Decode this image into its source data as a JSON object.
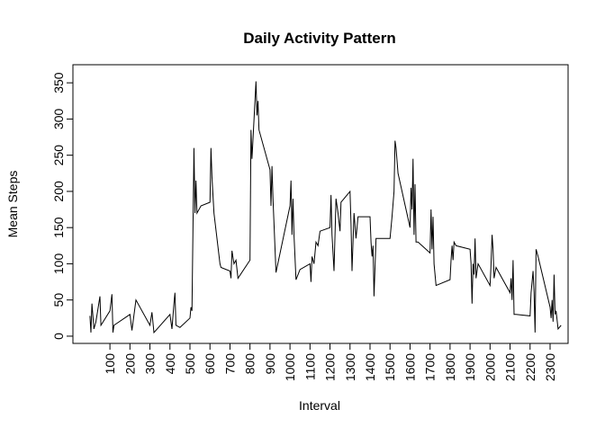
{
  "chart_data": {
    "type": "line",
    "title": "Daily Activity Pattern",
    "x_label": "Interval",
    "y_label": "Mean Steps",
    "color": "#000000",
    "x": [
      0,
      5,
      10,
      20,
      30,
      50,
      55,
      100,
      110,
      115,
      120,
      200,
      210,
      230,
      300,
      310,
      320,
      400,
      410,
      420,
      425,
      430,
      450,
      500,
      505,
      510,
      520,
      525,
      530,
      535,
      555,
      600,
      605,
      610,
      620,
      650,
      655,
      700,
      705,
      710,
      720,
      730,
      740,
      800,
      805,
      810,
      830,
      835,
      840,
      845,
      900,
      905,
      910,
      915,
      930,
      1000,
      1005,
      1010,
      1015,
      1020,
      1030,
      1050,
      1100,
      1105,
      1110,
      1120,
      1130,
      1140,
      1150,
      1200,
      1205,
      1210,
      1220,
      1230,
      1240,
      1250,
      1255,
      1300,
      1305,
      1310,
      1320,
      1330,
      1340,
      1400,
      1405,
      1410,
      1415,
      1420,
      1430,
      1500,
      1510,
      1520,
      1525,
      1530,
      1540,
      1600,
      1605,
      1610,
      1615,
      1620,
      1625,
      1630,
      1640,
      1700,
      1705,
      1710,
      1715,
      1720,
      1730,
      1800,
      1805,
      1810,
      1815,
      1820,
      1830,
      1900,
      1905,
      1910,
      1915,
      1920,
      1925,
      1930,
      1940,
      2000,
      2005,
      2010,
      2015,
      2020,
      2030,
      2100,
      2105,
      2110,
      2115,
      2120,
      2130,
      2200,
      2205,
      2210,
      2215,
      2220,
      2225,
      2230,
      2240,
      2300,
      2305,
      2310,
      2315,
      2320,
      2325,
      2330,
      2340,
      2355
    ],
    "values": [
      28,
      5,
      45,
      10,
      20,
      55,
      15,
      35,
      58,
      5,
      15,
      30,
      8,
      50,
      15,
      33,
      5,
      30,
      10,
      45,
      60,
      15,
      12,
      25,
      40,
      35,
      260,
      170,
      215,
      170,
      180,
      185,
      260,
      220,
      170,
      100,
      95,
      90,
      80,
      118,
      100,
      105,
      80,
      105,
      285,
      245,
      352,
      305,
      325,
      285,
      230,
      180,
      235,
      190,
      88,
      180,
      215,
      140,
      190,
      140,
      78,
      92,
      100,
      75,
      110,
      100,
      130,
      125,
      145,
      150,
      195,
      140,
      90,
      190,
      170,
      145,
      185,
      200,
      155,
      90,
      170,
      135,
      165,
      165,
      130,
      110,
      125,
      55,
      135,
      135,
      165,
      200,
      270,
      260,
      225,
      150,
      205,
      175,
      245,
      140,
      210,
      130,
      130,
      115,
      175,
      120,
      165,
      100,
      70,
      78,
      105,
      125,
      105,
      130,
      125,
      120,
      100,
      45,
      100,
      85,
      135,
      80,
      100,
      70,
      100,
      140,
      120,
      80,
      95,
      60,
      80,
      50,
      105,
      30,
      30,
      28,
      60,
      75,
      90,
      60,
      5,
      120,
      110,
      40,
      25,
      50,
      20,
      85,
      30,
      35,
      10,
      15
    ],
    "xlim": [
      -85,
      2390
    ],
    "ylim": [
      -10,
      375
    ],
    "xticks": [
      100,
      200,
      300,
      400,
      500,
      600,
      700,
      800,
      900,
      1000,
      1100,
      1200,
      1300,
      1400,
      1500,
      1600,
      1700,
      1800,
      1900,
      2000,
      2100,
      2200,
      2300
    ],
    "yticks": [
      0,
      50,
      100,
      150,
      200,
      250,
      300,
      350
    ]
  }
}
